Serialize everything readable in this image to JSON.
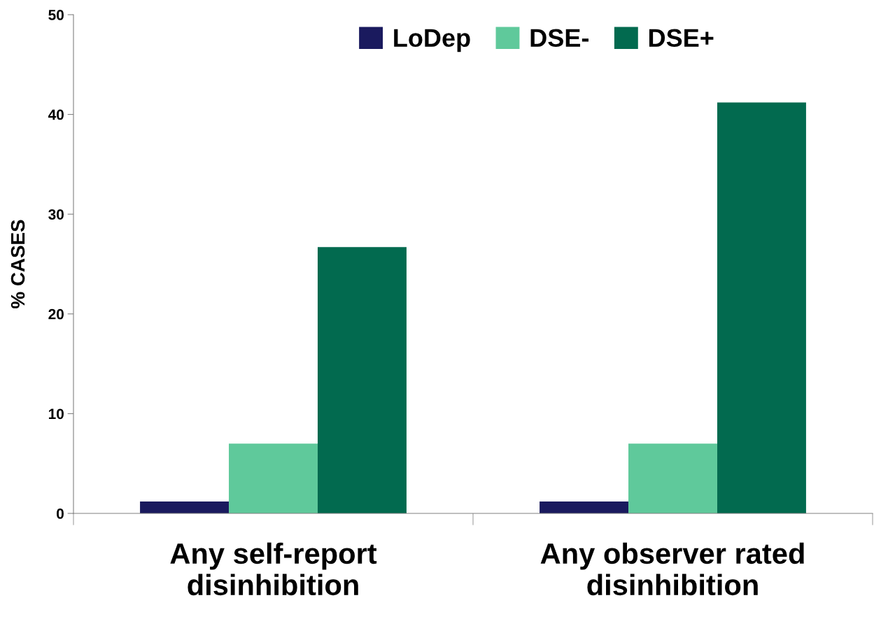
{
  "chart_data": {
    "type": "bar",
    "ylabel": "% CASES",
    "categories": [
      "Any self-report\ndisinhibition",
      "Any observer rated\ndisinhibition"
    ],
    "series": [
      {
        "name": "LoDep",
        "color": "#1a1a5e",
        "values": [
          1.2,
          1.2
        ]
      },
      {
        "name": "DSE-",
        "color": "#5fc99b",
        "values": [
          7.0,
          7.0
        ]
      },
      {
        "name": "DSE+",
        "color": "#026a4f",
        "values": [
          26.7,
          41.2
        ]
      }
    ],
    "ylim": [
      0,
      50
    ],
    "yticks": [
      0,
      10,
      20,
      30,
      40,
      50
    ],
    "grid": false,
    "legend": "top"
  }
}
